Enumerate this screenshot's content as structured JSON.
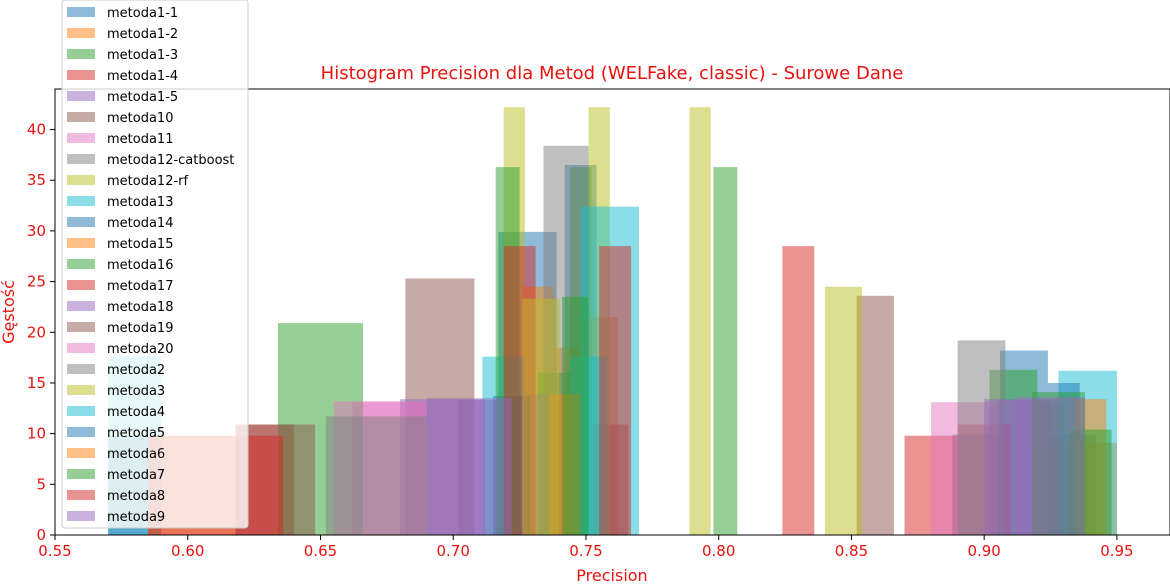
{
  "chart_data": {
    "type": "bar",
    "title": "Histogram Precision dla Metod (WELFake, classic) - Surowe Dane",
    "xlabel": "Precision",
    "ylabel": "Gęstość",
    "xlim": [
      0.55,
      0.97
    ],
    "ylim": [
      0,
      44
    ],
    "xticks": [
      0.55,
      0.6,
      0.65,
      0.7,
      0.75,
      0.8,
      0.85,
      0.9,
      0.95
    ],
    "xtick_labels": [
      "0.55",
      "0.60",
      "0.65",
      "0.70",
      "0.75",
      "0.80",
      "0.85",
      "0.90",
      "0.95"
    ],
    "yticks": [
      0,
      5,
      10,
      15,
      20,
      25,
      30,
      35,
      40
    ],
    "ytick_labels": [
      "0",
      "5",
      "10",
      "15",
      "20",
      "25",
      "30",
      "35",
      "40"
    ],
    "legend_position": "upper-left",
    "grid": false,
    "series": [
      {
        "name": "metoda1-1",
        "color": "#1f77b4",
        "bars": [
          [
            0.717,
            0.739,
            29.9
          ],
          [
            0.742,
            0.754,
            36.5
          ],
          [
            0.888,
            0.906,
            9.9
          ],
          [
            0.906,
            0.924,
            18.2
          ],
          [
            0.924,
            0.942,
            9.9
          ]
        ]
      },
      {
        "name": "metoda1-2",
        "color": "#ff7f0e",
        "bars": [
          [
            0.726,
            0.738,
            24.5
          ],
          [
            0.738,
            0.75,
            18.5
          ],
          [
            0.75,
            0.762,
            21.5
          ],
          [
            0.918,
            0.95,
            9.1
          ]
        ]
      },
      {
        "name": "metoda1-3",
        "color": "#2ca02c",
        "bars": [
          [
            0.732,
            0.744,
            16.0
          ],
          [
            0.744,
            0.752,
            36.3
          ],
          [
            0.902,
            0.92,
            16.3
          ],
          [
            0.92,
            0.93,
            13.0
          ]
        ]
      },
      {
        "name": "metoda1-4",
        "color": "#d62728",
        "bars": [
          [
            0.618,
            0.64,
            10.9
          ],
          [
            0.752,
            0.766,
            10.9
          ],
          [
            0.87,
            0.89,
            9.8
          ],
          [
            0.89,
            0.91,
            10.9
          ]
        ]
      },
      {
        "name": "metoda1-5",
        "color": "#9467bd",
        "bars": [
          [
            0.702,
            0.724,
            13.3
          ],
          [
            0.724,
            0.74,
            13.9
          ],
          [
            0.905,
            0.925,
            13.3
          ]
        ]
      },
      {
        "name": "metoda10",
        "color": "#8c564b",
        "bars": [
          [
            0.682,
            0.708,
            25.3
          ],
          [
            0.852,
            0.866,
            23.6
          ]
        ]
      },
      {
        "name": "metoda11",
        "color": "#e377c2",
        "bars": [
          [
            0.662,
            0.69,
            13.1
          ],
          [
            0.88,
            0.905,
            13.1
          ]
        ]
      },
      {
        "name": "metoda12-catboost",
        "color": "#7f7f7f",
        "bars": [
          [
            0.734,
            0.751,
            38.4
          ],
          [
            0.89,
            0.908,
            19.2
          ]
        ]
      },
      {
        "name": "metoda12-rf",
        "color": "#bcbd22",
        "bars": [
          [
            0.719,
            0.727,
            42.2
          ],
          [
            0.751,
            0.759,
            42.2
          ],
          [
            0.789,
            0.797,
            42.2
          ],
          [
            0.84,
            0.854,
            24.5
          ]
        ]
      },
      {
        "name": "metoda13",
        "color": "#17becf",
        "bars": [
          [
            0.711,
            0.727,
            17.6
          ],
          [
            0.744,
            0.758,
            17.6
          ],
          [
            0.748,
            0.77,
            32.4
          ],
          [
            0.928,
            0.95,
            16.2
          ]
        ]
      },
      {
        "name": "metoda14",
        "color": "#1f77b4",
        "bars": [
          [
            0.715,
            0.729,
            13.7
          ],
          [
            0.924,
            0.936,
            15.0
          ]
        ]
      },
      {
        "name": "metoda15",
        "color": "#ff7f0e",
        "bars": [
          [
            0.736,
            0.748,
            13.9
          ],
          [
            0.934,
            0.946,
            13.4
          ]
        ]
      },
      {
        "name": "metoda16",
        "color": "#2ca02c",
        "bars": [
          [
            0.634,
            0.666,
            20.9
          ],
          [
            0.716,
            0.725,
            36.3
          ],
          [
            0.798,
            0.807,
            36.3
          ],
          [
            0.932,
            0.948,
            10.4
          ]
        ]
      },
      {
        "name": "metoda17",
        "color": "#d62728",
        "bars": [
          [
            0.719,
            0.731,
            28.5
          ],
          [
            0.755,
            0.767,
            28.5
          ],
          [
            0.824,
            0.836,
            28.5
          ]
        ]
      },
      {
        "name": "metoda18",
        "color": "#9467bd",
        "bars": [
          [
            0.68,
            0.712,
            13.4
          ],
          [
            0.9,
            0.928,
            13.4
          ]
        ]
      },
      {
        "name": "metoda19",
        "color": "#8c564b",
        "bars": [
          [
            0.618,
            0.648,
            10.9
          ]
        ]
      },
      {
        "name": "metoda20",
        "color": "#e377c2",
        "bars": [
          [
            0.655,
            0.69,
            13.2
          ]
        ]
      },
      {
        "name": "metoda2",
        "color": "#7f7f7f",
        "bars": [
          [
            0.652,
            0.69,
            11.7
          ]
        ]
      },
      {
        "name": "metoda3",
        "color": "#bcbd22",
        "bars": [
          [
            0.726,
            0.74,
            23.3
          ]
        ]
      },
      {
        "name": "metoda4",
        "color": "#17becf",
        "bars": [
          [
            0.57,
            0.59,
            17.6
          ]
        ]
      },
      {
        "name": "metoda5",
        "color": "#1f77b4",
        "bars": [
          [
            0.57,
            0.59,
            9.8
          ]
        ]
      },
      {
        "name": "metoda6",
        "color": "#ff7f0e",
        "bars": [
          [
            0.585,
            0.618,
            9.8
          ]
        ]
      },
      {
        "name": "metoda7",
        "color": "#2ca02c",
        "bars": [
          [
            0.741,
            0.751,
            23.5
          ],
          [
            0.918,
            0.938,
            14.1
          ]
        ]
      },
      {
        "name": "metoda8",
        "color": "#d62728",
        "bars": [
          [
            0.585,
            0.636,
            9.8
          ]
        ]
      },
      {
        "name": "metoda9",
        "color": "#9467bd",
        "bars": [
          [
            0.69,
            0.722,
            13.5
          ],
          [
            0.912,
            0.938,
            13.6
          ]
        ]
      }
    ]
  }
}
